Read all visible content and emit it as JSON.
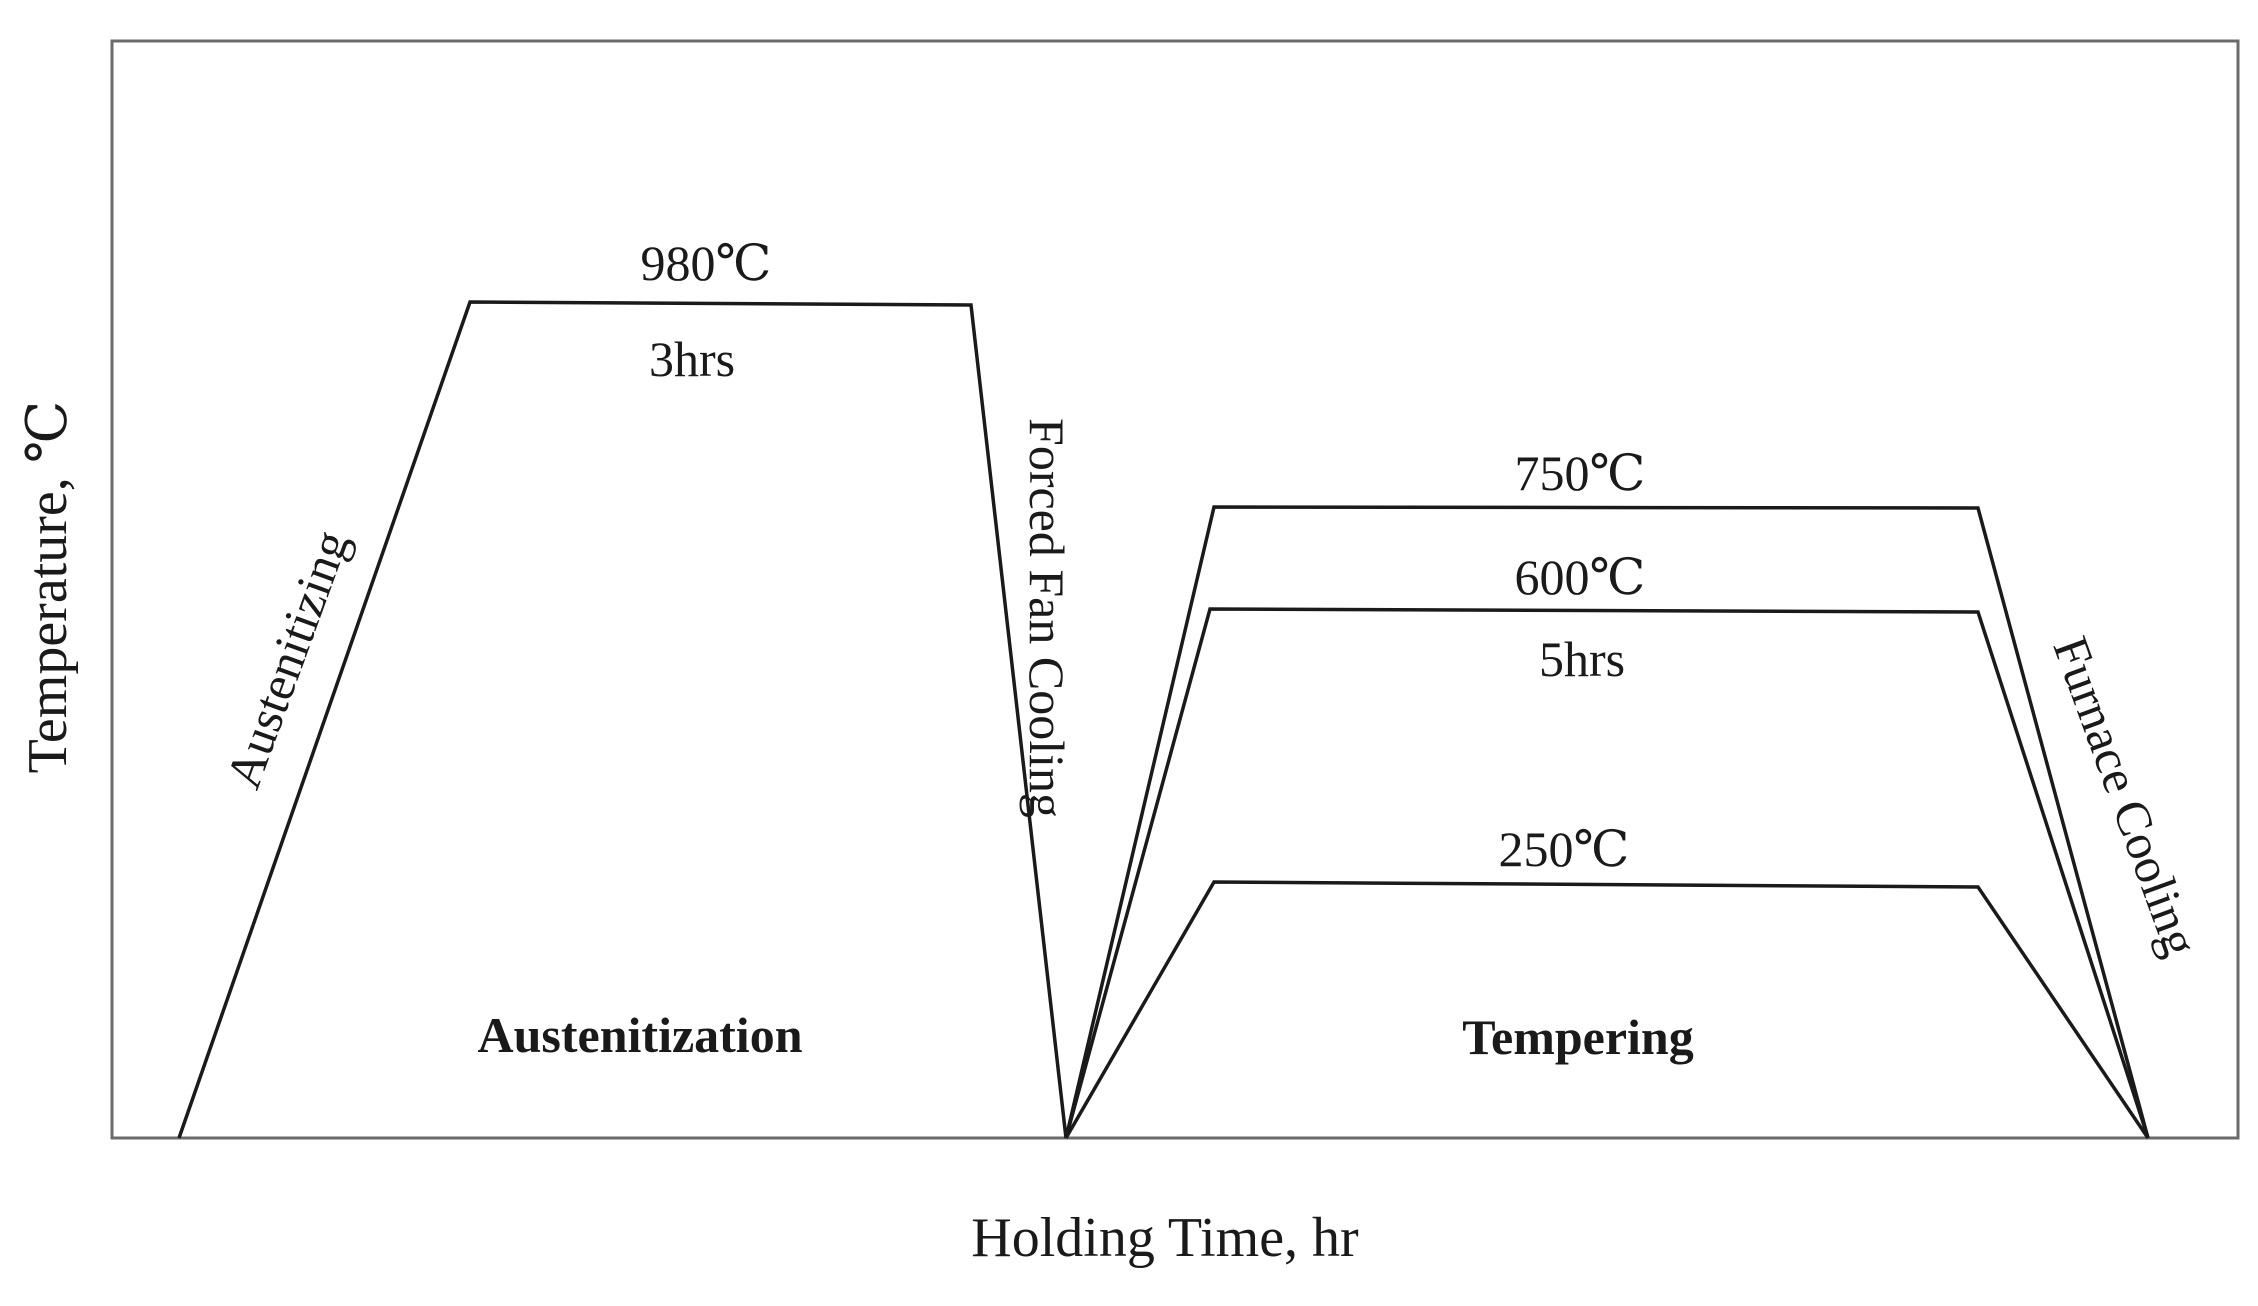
{
  "diagram": {
    "x_axis_label": "Holding Time, hr",
    "y_axis_label": "Temperature, ℃",
    "austenitization": {
      "temperature_label": "980℃",
      "duration_label": "3hrs",
      "heating_label": "Austenitizing",
      "cooling_label": "Forced Fan Cooling",
      "phase_label": "Austenitization"
    },
    "tempering": {
      "temperature_labels": [
        "750℃",
        "600℃",
        "250℃"
      ],
      "duration_label": "5hrs",
      "cooling_label": "Furnace Cooling",
      "phase_label": "Tempering"
    }
  }
}
